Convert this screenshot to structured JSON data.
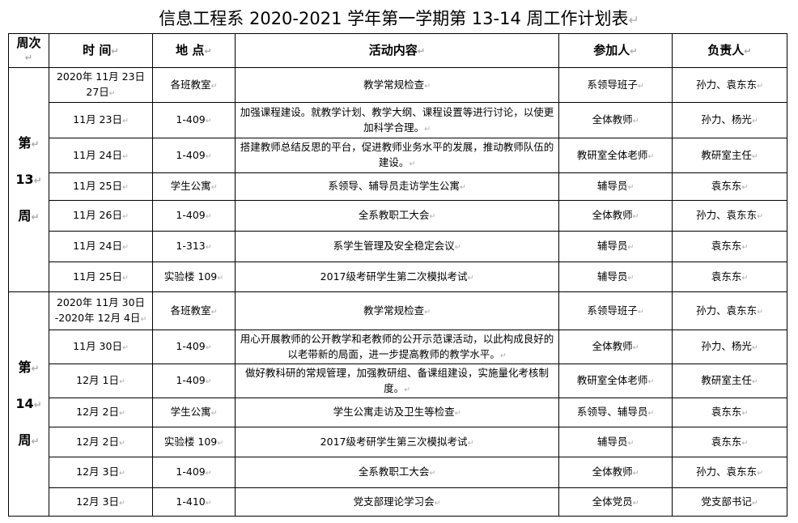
{
  "title": "信息工程系 2020-2021 学年第一学期第 13-14 周工作计划表",
  "headers": {
    "week": "周次",
    "time": "时 间",
    "place": "地 点",
    "content": "活动内容",
    "participants": "参加人",
    "leader": "负责人"
  },
  "weeks": [
    {
      "label": [
        "第",
        "13",
        "周"
      ],
      "rows": [
        {
          "time": "2020年 11月 23日 27日",
          "place": "各班教室",
          "content": "教学常规检查",
          "participants": "系领导班子",
          "leader": "孙力、袁东东"
        },
        {
          "time": "11月 23日",
          "place": "1-409",
          "content": "加强课程建设。就教学计划、教学大纲、课程设置等进行讨论，以使更加科学合理。",
          "participants": "全体教师",
          "leader": "孙力、杨光"
        },
        {
          "time": "11月 24日",
          "place": "1-409",
          "content": "搭建教师总结反思的平台，促进教师业务水平的发展，推动教师队伍的建设。",
          "participants": "教研室全体老师",
          "leader": "教研室主任"
        },
        {
          "time": "11月 25日",
          "place": "学生公寓",
          "content": "系领导、辅导员走访学生公寓",
          "participants": "辅导员",
          "leader": "袁东东"
        },
        {
          "time": "11月 26日",
          "place": "1-409",
          "content": "全系教职工大会",
          "participants": "全体教师",
          "leader": "孙力、袁东东"
        },
        {
          "time": "11月 24日",
          "place": "1-313",
          "content": "系学生管理及安全稳定会议",
          "participants": "辅导员",
          "leader": "袁东东"
        },
        {
          "time": "11月 25日",
          "place": "实验楼 109",
          "content": "2017级考研学生第二次模拟考试",
          "participants": "辅导员",
          "leader": "袁东东"
        }
      ]
    },
    {
      "label": [
        "第",
        "14",
        "周"
      ],
      "rows": [
        {
          "time": "2020年 11月 30日 -2020年 12月 4日",
          "place": "各班教室",
          "content": "教学常规检查",
          "participants": "系领导班子",
          "leader": "孙力、袁东东"
        },
        {
          "time": "11月 30日",
          "place": "1-409",
          "content": "用心开展教师的公开教学和老教师的公开示范课活动，以此构成良好的以老带新的局面，进一步提高教师的教学水平。",
          "participants": "全体教师",
          "leader": "孙力、杨光"
        },
        {
          "time": "12月 1日",
          "place": "1-409",
          "content": "做好教科研的常规管理，加强教研组、备课组建设，实施量化考核制度。",
          "participants": "教研室全体老师",
          "leader": "教研室主任"
        },
        {
          "time": "12月 2日",
          "place": "学生公寓",
          "content": "学生公寓走访及卫生等检查",
          "participants": "系领导、辅导员",
          "leader": "袁东东"
        },
        {
          "time": "12月 2日",
          "place": "实验楼 109",
          "content": "2017级考研学生第三次模拟考试",
          "participants": "辅导员",
          "leader": "袁东东"
        },
        {
          "time": "12月 3日",
          "place": "1-409",
          "content": "全系教职工大会",
          "participants": "全体教师",
          "leader": "孙力、袁东东"
        },
        {
          "time": "12月 3日",
          "place": "1-410",
          "content": "党支部理论学习会",
          "participants": "全体党员",
          "leader": "党支部书记"
        }
      ]
    }
  ]
}
